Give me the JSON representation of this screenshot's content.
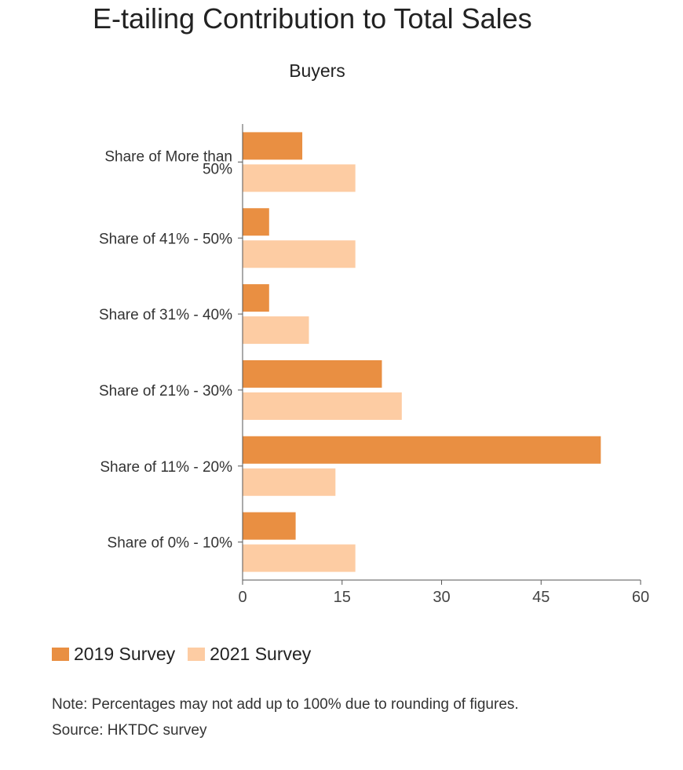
{
  "title": "E-tailing Contribution to Total Sales",
  "subtitle": "Buyers",
  "legend": {
    "items": [
      {
        "label": "2019 Survey",
        "color": "#e98f42"
      },
      {
        "label": "2021 Survey",
        "color": "#fdcca3"
      }
    ]
  },
  "footer": {
    "note": "Note: Percentages may not add up to 100% due to rounding of figures.",
    "source": "Source: HKTDC survey"
  },
  "chart_data": {
    "type": "bar",
    "orientation": "horizontal",
    "title": "E-tailing Contribution to Total Sales",
    "subtitle": "Buyers",
    "categories": [
      "Share of More than 50%",
      "Share of 41% - 50%",
      "Share of 31% - 40%",
      "Share of 21% - 30%",
      "Share of 11% - 20%",
      "Share of 0% - 10%"
    ],
    "category_label_lines": [
      [
        "Share of More than",
        "50%"
      ],
      [
        "Share of 41% - 50%"
      ],
      [
        "Share of 31% - 40%"
      ],
      [
        "Share of 21% - 30%"
      ],
      [
        "Share of 11% - 20%"
      ],
      [
        "Share of 0% - 10%"
      ]
    ],
    "series": [
      {
        "name": "2019 Survey",
        "color": "#e98f42",
        "values": [
          9,
          4,
          4,
          21,
          54,
          8
        ]
      },
      {
        "name": "2021 Survey",
        "color": "#fdcca3",
        "values": [
          17,
          17,
          10,
          24,
          14,
          17
        ]
      }
    ],
    "xlim": [
      0,
      60
    ],
    "xticks": [
      0,
      15,
      30,
      45,
      60
    ],
    "xlabel": "",
    "ylabel": "",
    "grid": false,
    "legend_position": "bottom-left"
  }
}
